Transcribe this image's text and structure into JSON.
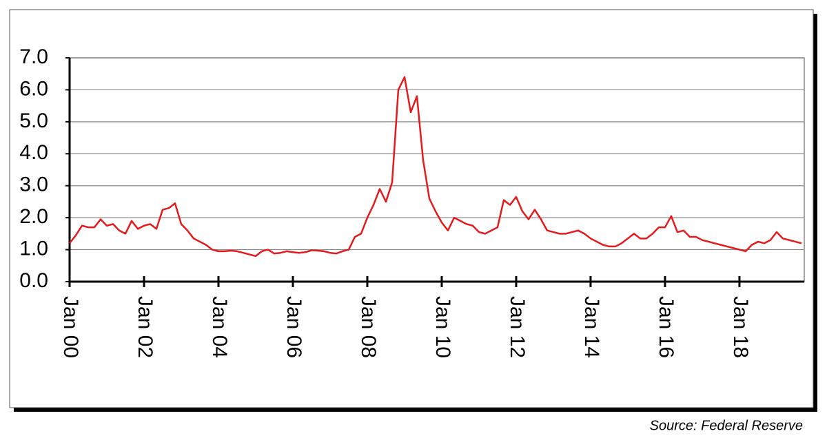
{
  "chart_data": {
    "type": "line",
    "categories": [
      "Jan 00",
      null,
      null,
      null,
      null,
      null,
      null,
      null,
      null,
      null,
      null,
      null,
      "Jan 02",
      null,
      null,
      null,
      null,
      null,
      null,
      null,
      null,
      null,
      null,
      null,
      "Jan 04",
      null,
      null,
      null,
      null,
      null,
      null,
      null,
      null,
      null,
      null,
      null,
      "Jan 06",
      null,
      null,
      null,
      null,
      null,
      null,
      null,
      null,
      null,
      null,
      null,
      "Jan 08",
      null,
      null,
      null,
      null,
      null,
      null,
      null,
      null,
      null,
      null,
      null,
      "Jan 10",
      null,
      null,
      null,
      null,
      null,
      null,
      null,
      null,
      null,
      null,
      null,
      "Jan 12",
      null,
      null,
      null,
      null,
      null,
      null,
      null,
      null,
      null,
      null,
      null,
      "Jan 14",
      null,
      null,
      null,
      null,
      null,
      null,
      null,
      null,
      null,
      null,
      null,
      "Jan 16",
      null,
      null,
      null,
      null,
      null,
      null,
      null,
      null,
      null,
      null,
      null,
      "Jan 18",
      null,
      null,
      null,
      null,
      null,
      null,
      null,
      null,
      null,
      null
    ],
    "values": [
      1.2,
      1.45,
      1.75,
      1.7,
      1.7,
      1.95,
      1.75,
      1.8,
      1.6,
      1.5,
      1.9,
      1.65,
      1.75,
      1.8,
      1.65,
      2.25,
      2.3,
      2.45,
      1.8,
      1.6,
      1.35,
      1.25,
      1.15,
      1.0,
      0.95,
      0.95,
      0.97,
      0.95,
      0.9,
      0.85,
      0.8,
      0.95,
      1.0,
      0.88,
      0.9,
      0.95,
      0.92,
      0.9,
      0.92,
      0.98,
      0.97,
      0.95,
      0.9,
      0.88,
      0.95,
      1.0,
      1.4,
      1.5,
      2.0,
      2.4,
      2.9,
      2.5,
      3.1,
      6.0,
      6.4,
      5.3,
      5.8,
      3.8,
      2.6,
      2.2,
      1.85,
      1.6,
      2.0,
      1.9,
      1.8,
      1.75,
      1.55,
      1.5,
      1.6,
      1.7,
      2.55,
      2.4,
      2.65,
      2.2,
      1.95,
      2.25,
      1.95,
      1.6,
      1.55,
      1.5,
      1.5,
      1.55,
      1.6,
      1.5,
      1.35,
      1.25,
      1.15,
      1.1,
      1.1,
      1.2,
      1.35,
      1.5,
      1.35,
      1.35,
      1.5,
      1.7,
      1.7,
      2.05,
      1.55,
      1.6,
      1.4,
      1.4,
      1.3,
      1.25,
      1.2,
      1.15,
      1.1,
      1.05,
      1.0,
      0.95,
      1.15,
      1.25,
      1.2,
      1.3,
      1.55,
      1.35,
      1.3,
      1.25,
      1.2
    ],
    "color": "#e41a1c",
    "ylim": [
      0,
      7
    ],
    "yticks": [
      {
        "value": 0,
        "label": "0.0"
      },
      {
        "value": 1,
        "label": "1.0"
      },
      {
        "value": 2,
        "label": "2.0"
      },
      {
        "value": 3,
        "label": "3.0"
      },
      {
        "value": 4,
        "label": "4.0"
      },
      {
        "value": 5,
        "label": "5.0"
      },
      {
        "value": 6,
        "label": "6.0"
      },
      {
        "value": 7,
        "label": "7.0"
      }
    ],
    "grid": true,
    "source": "Source: Federal Reserve"
  }
}
